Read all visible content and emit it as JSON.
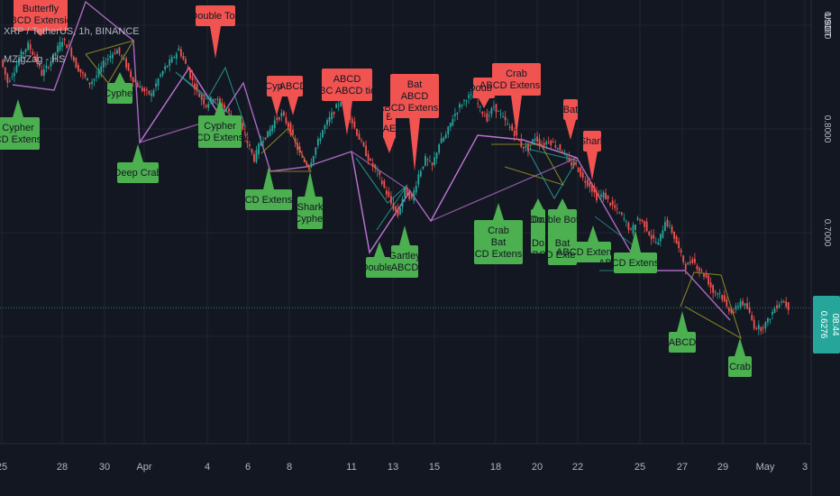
{
  "header": {
    "symbol_line": "XRP / TetherUS, 1h, BINANCE",
    "indicator": "MZigZag - HS"
  },
  "price_axis": {
    "currency": "USDT",
    "current_price": "0.6276",
    "countdown": "08:44"
  },
  "colors": {
    "background": "#131722",
    "grid": "#1f2430",
    "bull_label": "#4caf50",
    "bear_label": "#f05350",
    "up_candle": "#26a69a",
    "down_candle": "#ef5350",
    "zigzag_purple": "#c678dd",
    "pattern_teal": "#26a69a",
    "pattern_olive": "#9e9d24",
    "last_price": "#26a69a"
  },
  "chart_data": {
    "type": "line",
    "y_ticks": [
      "0.9000",
      "0.8000",
      "0.7000"
    ],
    "ylim": [
      0.5,
      0.9
    ],
    "x_ticks": [
      "25",
      "28",
      "30",
      "Apr",
      "4",
      "6",
      "8",
      "11",
      "13",
      "15",
      "18",
      "20",
      "22",
      "25",
      "27",
      "29",
      "May",
      "3"
    ],
    "grid": true,
    "series": [
      {
        "values": [
          0.867,
          0.845,
          0.857,
          0.872,
          0.881,
          0.869,
          0.853,
          0.862,
          0.874,
          0.886,
          0.878,
          0.861,
          0.852,
          0.844,
          0.851,
          0.863,
          0.871,
          0.876,
          0.866,
          0.851,
          0.842,
          0.836,
          0.833,
          0.848,
          0.859,
          0.867,
          0.877,
          0.862,
          0.846,
          0.832,
          0.823,
          0.831,
          0.825,
          0.818,
          0.811,
          0.803,
          0.787,
          0.771,
          0.789,
          0.795,
          0.808,
          0.814,
          0.803,
          0.786,
          0.771,
          0.764,
          0.782,
          0.799,
          0.81,
          0.821,
          0.831,
          0.812,
          0.796,
          0.781,
          0.767,
          0.758,
          0.743,
          0.728,
          0.717,
          0.741,
          0.732,
          0.756,
          0.771,
          0.764,
          0.786,
          0.794,
          0.811,
          0.822,
          0.83,
          0.832,
          0.819,
          0.81,
          0.822,
          0.813,
          0.804,
          0.796,
          0.784,
          0.781,
          0.792,
          0.784,
          0.789,
          0.784,
          0.779,
          0.767,
          0.765,
          0.752,
          0.746,
          0.734,
          0.737,
          0.728,
          0.721,
          0.713,
          0.701,
          0.714,
          0.708,
          0.695,
          0.689,
          0.712,
          0.701,
          0.684,
          0.667,
          0.674,
          0.664,
          0.657,
          0.643,
          0.642,
          0.628,
          0.623,
          0.634,
          0.627,
          0.61,
          0.608,
          0.615,
          0.627,
          0.635,
          0.628
        ]
      }
    ],
    "annotations": {
      "bearish": [
        "Butterfly\nABCD Extension",
        "Double Top",
        "Cyph",
        "ABCD",
        "ABCD\nABC ABCD tion",
        "B\nAE",
        "Bat\nABCD\nABCD Extension",
        "Double",
        "Crab\nABCD Extension",
        "Bat",
        "Shark"
      ],
      "bullish": [
        "Cypher\nABCD Extension",
        "Cypher",
        "Deep Crab",
        "Cypher\nABCD Extension",
        "ABCD Extension",
        "Shark\nCypher",
        "Double I",
        "Gartley\nABCD",
        "Crab\nBat\nABCD Extension",
        "Do\n\nDo",
        "Double Bottom\n\nBat\nABCD Extension",
        "ABCD Extension",
        "ABCD Extension",
        "ABCD",
        "Crab"
      ]
    }
  }
}
